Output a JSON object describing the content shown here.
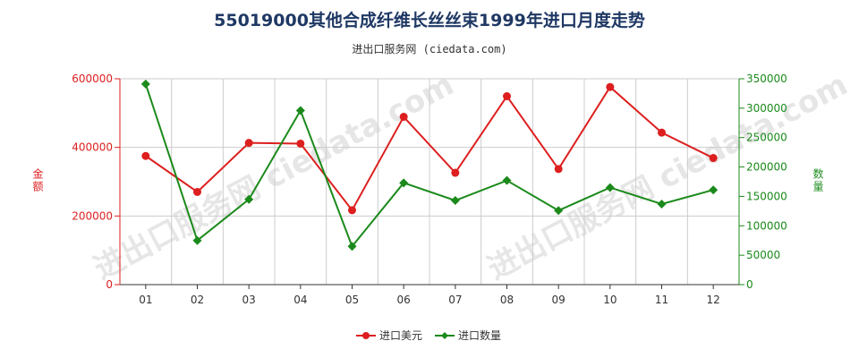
{
  "header": {
    "title": "55019000其他合成纤维长丝丝束1999年进口月度走势",
    "subtitle": "进出口服务网 (ciedata.com)"
  },
  "watermark": "进出口服务网 ciedata.com",
  "colors": {
    "amount": "#dd1f1f",
    "quantity": "#1b8a1b",
    "title": "#1f3864",
    "grid": "#cccccc"
  },
  "chart_data": {
    "type": "line",
    "categories": [
      "01",
      "02",
      "03",
      "04",
      "05",
      "06",
      "07",
      "08",
      "09",
      "10",
      "11",
      "12"
    ],
    "series": [
      {
        "name": "进口美元",
        "axis": "left",
        "color": "#dd1f1f",
        "marker": "circle",
        "values": [
          375000,
          270000,
          413000,
          411000,
          217000,
          489000,
          326000,
          549000,
          337000,
          576000,
          443000,
          369000
        ]
      },
      {
        "name": "进口数量",
        "axis": "right",
        "color": "#1b8a1b",
        "marker": "diamond",
        "values": [
          341000,
          75000,
          145000,
          296000,
          65000,
          173000,
          143000,
          177000,
          126000,
          165000,
          137000,
          161000
        ]
      }
    ],
    "y_left": {
      "label": "金额",
      "lim": [
        0,
        600000
      ],
      "ticks": [
        "0",
        "200000",
        "400000",
        "600000"
      ],
      "tick_values": [
        0,
        200000,
        400000,
        600000
      ]
    },
    "y_right": {
      "label": "数量",
      "lim": [
        0,
        350000
      ],
      "ticks": [
        "0",
        "50000",
        "100000",
        "150000",
        "200000",
        "250000",
        "300000",
        "350000"
      ],
      "tick_values": [
        0,
        50000,
        100000,
        150000,
        200000,
        250000,
        300000,
        350000
      ]
    },
    "grid": true,
    "legend_position": "bottom-center"
  }
}
